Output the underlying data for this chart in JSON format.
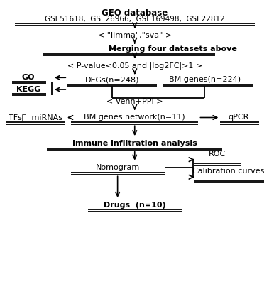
{
  "bg_color": "#ffffff",
  "geo_title": "GEO database",
  "geo_subtitle": "GSE51618，  GSE26966，  GSE169498，  GSE22812",
  "limma_text": "< \"limma\",\"sva\" >",
  "merging_text": "Merging four datasets above",
  "pvalue_text": "< P-value<0.05 and |log2FC|>1 >",
  "degs_text": "DEGs(n=248)",
  "bm_text": "BM genes(n=224)",
  "go_text": "GO",
  "kegg_text": "KEGG",
  "venn_text": "< Venn+PPI >",
  "bmnet_text": "BM genes network(n=11)",
  "tfs_text": "TFs，  miRNAs",
  "qpcr_text": "qPCR",
  "immune_text": "Immune infiltration analysis",
  "nomogram_text": "Nomogram",
  "roc_text": "ROC",
  "calib_text": "Calibration curves",
  "drugs_text": "Drugs  (n=10)"
}
